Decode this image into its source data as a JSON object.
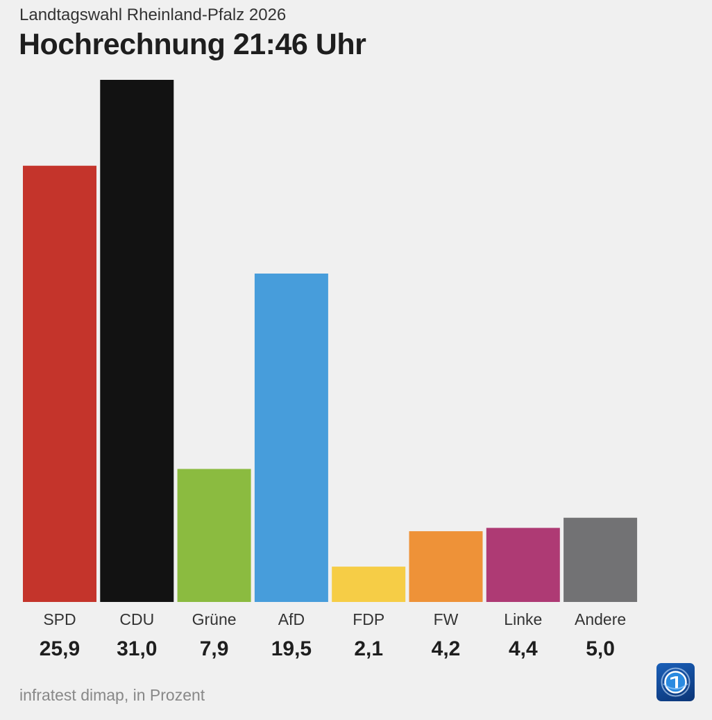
{
  "header": {
    "subtitle": "Landtagswahl Rheinland-Pfalz 2026",
    "title": "Hochrechnung 21:46 Uhr"
  },
  "footer": {
    "source": "infratest dimap, in Prozent"
  },
  "logo": {
    "icon": "tagesschau-logo-icon"
  },
  "chart_data": {
    "type": "bar",
    "title": "Hochrechnung 21:46 Uhr",
    "subtitle": "Landtagswahl Rheinland-Pfalz 2026",
    "xlabel": "",
    "ylabel": "",
    "ylim": [
      0,
      31.0
    ],
    "grid": false,
    "categories": [
      "SPD",
      "CDU",
      "Grüne",
      "AfD",
      "FDP",
      "FW",
      "Linke",
      "Andere"
    ],
    "values": [
      25.9,
      31.0,
      7.9,
      19.5,
      2.1,
      4.2,
      4.4,
      5.0
    ],
    "value_labels": [
      "25,9",
      "31,0",
      "7,9",
      "19,5",
      "2,1",
      "4,2",
      "4,4",
      "5,0"
    ],
    "colors": [
      "#c4342b",
      "#121212",
      "#8bbb40",
      "#479ddb",
      "#f6cd46",
      "#ee9238",
      "#ae3a74",
      "#727274"
    ]
  }
}
